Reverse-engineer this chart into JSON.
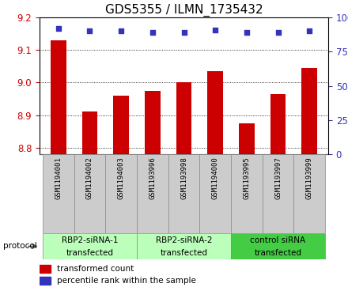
{
  "title": "GDS5355 / ILMN_1735432",
  "samples": [
    "GSM1194001",
    "GSM1194002",
    "GSM1194003",
    "GSM1193996",
    "GSM1193998",
    "GSM1194000",
    "GSM1193995",
    "GSM1193997",
    "GSM1193999"
  ],
  "bar_values": [
    9.13,
    8.91,
    8.96,
    8.975,
    9.0,
    9.035,
    8.875,
    8.965,
    9.045
  ],
  "percentile_values": [
    92,
    90,
    90,
    89,
    89,
    91,
    89,
    89,
    90
  ],
  "bar_color": "#cc0000",
  "dot_color": "#3333bb",
  "ylim_left": [
    8.78,
    9.2
  ],
  "ylim_right": [
    0,
    100
  ],
  "yticks_left": [
    8.8,
    8.9,
    9.0,
    9.1,
    9.2
  ],
  "yticks_right": [
    0,
    25,
    50,
    75,
    100
  ],
  "groups": [
    {
      "label": "RBP2-siRNA-1\ntransfected",
      "indices": [
        0,
        1,
        2
      ],
      "color": "#bbffbb"
    },
    {
      "label": "RBP2-siRNA-2\ntransfected",
      "indices": [
        3,
        4,
        5
      ],
      "color": "#bbffbb"
    },
    {
      "label": "control siRNA\ntransfected",
      "indices": [
        6,
        7,
        8
      ],
      "color": "#44cc44"
    }
  ],
  "sample_bg_color": "#cccccc",
  "protocol_label": "protocol",
  "legend_bar_label": "transformed count",
  "legend_dot_label": "percentile rank within the sample",
  "background_color": "#ffffff",
  "tick_color_left": "#cc0000",
  "tick_color_right": "#3333bb",
  "bar_width": 0.5,
  "title_fontsize": 11,
  "tick_fontsize": 8.5,
  "sample_fontsize": 6.5,
  "group_fontsize": 7.5,
  "legend_fontsize": 7.5
}
